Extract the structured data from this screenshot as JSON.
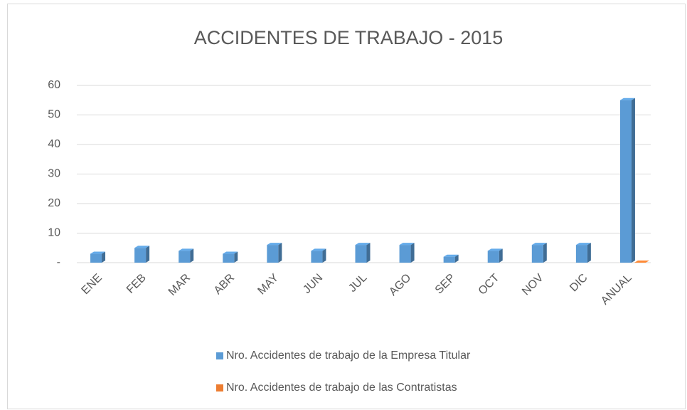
{
  "chart_data": {
    "type": "bar",
    "title": "ACCIDENTES DE TRABAJO - 2015",
    "categories": [
      "ENE",
      "FEB",
      "MAR",
      "ABR",
      "MAY",
      "JUN",
      "JUL",
      "AGO",
      "SEP",
      "OCT",
      "NOV",
      "DIC",
      "ANUAL"
    ],
    "series": [
      {
        "name": "Nro. Accidentes de trabajo de la Empresa Titular",
        "color": "#5b9bd5",
        "values": [
          3,
          5,
          4,
          3,
          6,
          4,
          6,
          6,
          2,
          4,
          6,
          6,
          55
        ]
      },
      {
        "name": "Nro. Accidentes de trabajo de las Contratistas",
        "color": "#ed7d31",
        "values": [
          null,
          null,
          null,
          null,
          null,
          null,
          null,
          null,
          null,
          null,
          null,
          null,
          0
        ]
      }
    ],
    "ylim": [
      0,
      60
    ],
    "yticks": [
      {
        "value": 0,
        "label": "-"
      },
      10,
      20,
      30,
      40,
      50,
      60
    ],
    "grid": true,
    "legend": "bottom"
  }
}
